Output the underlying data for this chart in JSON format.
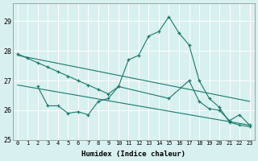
{
  "xlabel": "Humidex (Indice chaleur)",
  "bg_color": "#d8f0f0",
  "grid_color": "#ffffff",
  "line_color": "#1a7a6a",
  "xlim": [
    -0.5,
    23.5
  ],
  "ylim": [
    25,
    29.6
  ],
  "yticks": [
    25,
    26,
    27,
    28,
    29
  ],
  "xticks": [
    0,
    1,
    2,
    3,
    4,
    5,
    6,
    7,
    8,
    9,
    10,
    11,
    12,
    13,
    14,
    15,
    16,
    17,
    18,
    19,
    20,
    21,
    22,
    23
  ],
  "line1_x": [
    0,
    1,
    2,
    3,
    4,
    5,
    6,
    7,
    8,
    9,
    10,
    11,
    12,
    13,
    14,
    15,
    16,
    17,
    18,
    19,
    20,
    21,
    22,
    23
  ],
  "line1_y": [
    27.9,
    27.75,
    27.6,
    27.45,
    27.3,
    27.15,
    27.0,
    26.85,
    26.7,
    26.55,
    26.8,
    27.7,
    27.85,
    28.5,
    28.65,
    29.15,
    28.6,
    28.2,
    27.0,
    26.4,
    26.1,
    25.6,
    25.5,
    25.45
  ],
  "line2_x": [
    2,
    3,
    4,
    5,
    6,
    7,
    8,
    9,
    10,
    15,
    17,
    18,
    19,
    20,
    21,
    22,
    23
  ],
  "line2_y": [
    26.8,
    26.15,
    26.15,
    25.9,
    25.95,
    25.85,
    26.3,
    26.4,
    26.8,
    26.4,
    27.0,
    26.3,
    26.05,
    26.0,
    25.65,
    25.85,
    25.5
  ],
  "line3_x": [
    0,
    23
  ],
  "line3_y": [
    27.85,
    26.3
  ],
  "line4_x": [
    0,
    23
  ],
  "line4_y": [
    26.85,
    25.5
  ]
}
